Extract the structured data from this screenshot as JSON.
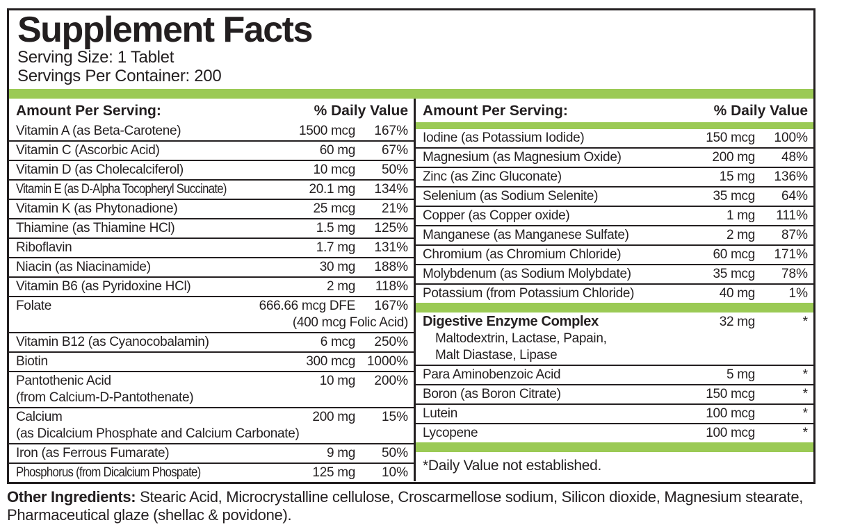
{
  "colors": {
    "accent_green": "#9BCA55",
    "ink": "#231F20"
  },
  "header": {
    "title": "Supplement Facts",
    "serving_size": "Serving Size: 1 Tablet",
    "servings_per_container": "Servings Per Container: 200"
  },
  "columns_header": {
    "amount_label": "Amount Per Serving:",
    "dv_label": "% Daily Value"
  },
  "left_rows": [
    {
      "label": "Vitamin A (as Beta-Carotene)",
      "amount": "1500 mcg",
      "dv": "167%"
    },
    {
      "label": "Vitamin C (Ascorbic Acid)",
      "amount": "60 mg",
      "dv": "67%"
    },
    {
      "label": "Vitamin D (as Cholecalciferol)",
      "amount": "10 mcg",
      "dv": "50%"
    },
    {
      "label": "Vitamin E (as D-Alpha Tocopheryl Succinate)",
      "amount": "20.1 mg",
      "dv": "134%",
      "tight": true
    },
    {
      "label": "Vitamin K (as Phytonadione)",
      "amount": "25 mcg",
      "dv": "21%"
    },
    {
      "label": "Thiamine (as Thiamine HCl)",
      "amount": "1.5 mg",
      "dv": "125%"
    },
    {
      "label": "Riboflavin",
      "amount": "1.7 mg",
      "dv": "131%"
    },
    {
      "label": "Niacin (as Niacinamide)",
      "amount": "30 mg",
      "dv": "188%"
    },
    {
      "label": "Vitamin B6 (as Pyridoxine HCl)",
      "amount": "2 mg",
      "dv": "118%"
    },
    {
      "label": "Folate",
      "amount": "666.66 mcg DFE",
      "dv": "167%",
      "line2_right": "(400 mcg Folic Acid)"
    },
    {
      "label": "Vitamin B12 (as Cyanocobalamin)",
      "amount": "6 mcg",
      "dv": "250%"
    },
    {
      "label": "Biotin",
      "amount": "300 mcg",
      "dv": "1000%"
    },
    {
      "label": "Pantothenic Acid",
      "amount": "10 mg",
      "dv": "200%",
      "label2": "(from Calcium-D-Pantothenate)"
    },
    {
      "label": "Calcium",
      "amount": "200 mg",
      "dv": "15%",
      "label2": "(as Dicalcium Phosphate and Calcium Carbonate)"
    },
    {
      "label": "Iron (as Ferrous Fumarate)",
      "amount": "9 mg",
      "dv": "50%"
    },
    {
      "label": "Phosphorus (from Dicalcium Phospate)",
      "amount": "125 mg",
      "dv": "10%",
      "tight": true
    }
  ],
  "right_sections": [
    {
      "rows": [
        {
          "label": "Iodine (as Potassium Iodide)",
          "amount": "150 mcg",
          "dv": "100%"
        },
        {
          "label": "Magnesium (as Magnesium Oxide)",
          "amount": "200 mg",
          "dv": "48%"
        },
        {
          "label": "Zinc (as Zinc Gluconate)",
          "amount": "15 mg",
          "dv": "136%"
        },
        {
          "label": "Selenium (as Sodium Selenite)",
          "amount": "35 mcg",
          "dv": "64%"
        },
        {
          "label": "Copper (as Copper oxide)",
          "amount": "1 mg",
          "dv": "111%"
        },
        {
          "label": "Manganese (as Manganese Sulfate)",
          "amount": "2 mg",
          "dv": "87%"
        },
        {
          "label": "Chromium (as Chromium Chloride)",
          "amount": "60 mcg",
          "dv": "171%"
        },
        {
          "label": "Molybdenum (as Sodium Molybdate)",
          "amount": "35 mcg",
          "dv": "78%"
        },
        {
          "label": "Potassium (from Potassium Chloride)",
          "amount": "40 mg",
          "dv": "1%"
        }
      ]
    },
    {
      "rows": [
        {
          "label": "Digestive Enzyme Complex",
          "amount": "32 mg",
          "dv": "*",
          "bold": true,
          "sub": [
            "Maltodextrin, Lactase, Papain,",
            "Malt Diastase, Lipase"
          ]
        },
        {
          "label": "Para Aminobenzoic Acid",
          "amount": "5 mg",
          "dv": "*"
        },
        {
          "label": "Boron (as Boron Citrate)",
          "amount": "150 mcg",
          "dv": "*"
        },
        {
          "label": "Lutein",
          "amount": "100 mcg",
          "dv": "*"
        },
        {
          "label": "Lycopene",
          "amount": "100 mcg",
          "dv": "*"
        }
      ]
    }
  ],
  "footnote": "*Daily Value not established.",
  "other_ingredients": {
    "label": "Other Ingredients:",
    "text": " Stearic Acid, Microcrystalline cellulose, Croscarmellose sodium, Silicon dioxide, Magnesium stearate, Pharmaceutical glaze (shellac & povidone)."
  }
}
